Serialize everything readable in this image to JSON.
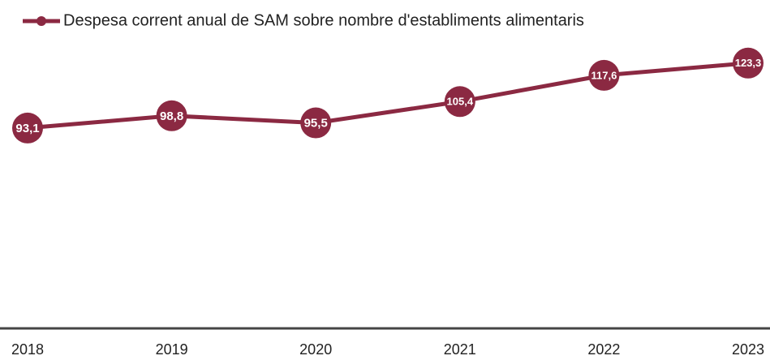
{
  "chart_data": {
    "type": "line",
    "categories": [
      "2018",
      "2019",
      "2020",
      "2021",
      "2022",
      "2023"
    ],
    "series": [
      {
        "name": "Despesa corrent anual de SAM sobre nombre d'establiments alimentaris",
        "color": "#8b2942",
        "values": [
          93.1,
          98.8,
          95.5,
          105.4,
          117.6,
          123.3
        ],
        "value_labels": [
          "93,1",
          "98,8",
          "95,5",
          "105,4",
          "117,6",
          "123,3"
        ]
      }
    ],
    "ylim": [
      0,
      130
    ],
    "legend": "top-left"
  }
}
